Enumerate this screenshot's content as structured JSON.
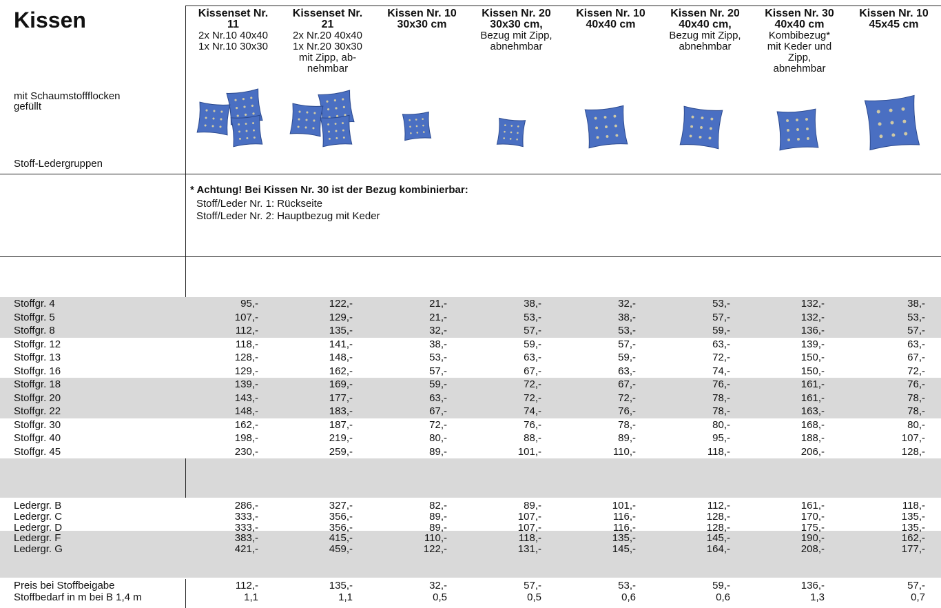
{
  "title": "Kissen",
  "left_notes": [
    "mit Schaumstoffflocken",
    "gefüllt"
  ],
  "group_label": "Stoff-Ledergruppen",
  "columns": [
    {
      "name_lines": [
        "Kissenset Nr.",
        "11"
      ],
      "desc_lines": [
        "2x Nr.10 40x40",
        "1x Nr.10 30x30"
      ]
    },
    {
      "name_lines": [
        "Kissenset Nr.",
        "21"
      ],
      "desc_lines": [
        "2x Nr.20 40x40",
        "1x Nr.20 30x30",
        "mit Zipp, ab-",
        "nehmbar"
      ]
    },
    {
      "name_lines": [
        "Kissen Nr. 10",
        "30x30 cm"
      ],
      "desc_lines": []
    },
    {
      "name_lines": [
        "Kissen Nr. 20",
        "30x30 cm,"
      ],
      "desc_lines": [
        "Bezug mit Zipp,",
        "abnehmbar"
      ]
    },
    {
      "name_lines": [
        "Kissen Nr. 10",
        "40x40 cm"
      ],
      "desc_lines": []
    },
    {
      "name_lines": [
        "Kissen Nr. 20",
        "40x40 cm,"
      ],
      "desc_lines": [
        "Bezug mit Zipp,",
        "abnehmbar"
      ]
    },
    {
      "name_lines": [
        "Kissen Nr. 30",
        "40x40 cm"
      ],
      "desc_lines": [
        "Kombibezug*",
        "mit Keder und",
        "Zipp,",
        "abnehmbar"
      ]
    },
    {
      "name_lines": [
        "Kissen Nr. 10",
        "45x45 cm"
      ],
      "desc_lines": []
    }
  ],
  "note": {
    "title": "* Achtung!  Bei Kissen Nr. 30 ist der Bezug kombinierbar:",
    "lines": [
      "Stoff/Leder Nr. 1: Rückseite",
      "Stoff/Leder Nr. 2: Hauptbezug mit Keder"
    ]
  },
  "stoff_rows": [
    {
      "label": "Stoffgr. 4",
      "prices": [
        "95,-",
        "122,-",
        "21,-",
        "38,-",
        "32,-",
        "53,-",
        "132,-",
        "38,-"
      ]
    },
    {
      "label": "Stoffgr. 5",
      "prices": [
        "107,-",
        "129,-",
        "21,-",
        "53,-",
        "38,-",
        "57,-",
        "132,-",
        "53,-"
      ]
    },
    {
      "label": "Stoffgr. 8",
      "prices": [
        "112,-",
        "135,-",
        "32,-",
        "57,-",
        "53,-",
        "59,-",
        "136,-",
        "57,-"
      ]
    },
    {
      "label": "Stoffgr. 12",
      "prices": [
        "118,-",
        "141,-",
        "38,-",
        "59,-",
        "57,-",
        "63,-",
        "139,-",
        "63,-"
      ]
    },
    {
      "label": "Stoffgr. 13",
      "prices": [
        "128,-",
        "148,-",
        "53,-",
        "63,-",
        "59,-",
        "72,-",
        "150,-",
        "67,-"
      ]
    },
    {
      "label": "Stoffgr. 16",
      "prices": [
        "129,-",
        "162,-",
        "57,-",
        "67,-",
        "63,-",
        "74,-",
        "150,-",
        "72,-"
      ]
    },
    {
      "label": "Stoffgr. 18",
      "prices": [
        "139,-",
        "169,-",
        "59,-",
        "72,-",
        "67,-",
        "76,-",
        "161,-",
        "76,-"
      ]
    },
    {
      "label": "Stoffgr. 20",
      "prices": [
        "143,-",
        "177,-",
        "63,-",
        "72,-",
        "72,-",
        "78,-",
        "161,-",
        "78,-"
      ]
    },
    {
      "label": "Stoffgr. 22",
      "prices": [
        "148,-",
        "183,-",
        "67,-",
        "74,-",
        "76,-",
        "78,-",
        "163,-",
        "78,-"
      ]
    },
    {
      "label": "Stoffgr. 30",
      "prices": [
        "162,-",
        "187,-",
        "72,-",
        "76,-",
        "78,-",
        "80,-",
        "168,-",
        "80,-"
      ]
    },
    {
      "label": "Stoffgr. 40",
      "prices": [
        "198,-",
        "219,-",
        "80,-",
        "88,-",
        "89,-",
        "95,-",
        "188,-",
        "107,-"
      ]
    },
    {
      "label": "Stoffgr. 45",
      "prices": [
        "230,-",
        "259,-",
        "89,-",
        "101,-",
        "110,-",
        "118,-",
        "206,-",
        "128,-"
      ]
    }
  ],
  "leder_rows": [
    {
      "label": "Ledergr. B",
      "prices": [
        "286,-",
        "327,-",
        "82,-",
        "89,-",
        "101,-",
        "112,-",
        "161,-",
        "118,-"
      ]
    },
    {
      "label": "Ledergr. C",
      "prices": [
        "333,-",
        "356,-",
        "89,-",
        "107,-",
        "116,-",
        "128,-",
        "170,-",
        "135,-"
      ]
    },
    {
      "label": "Ledergr. D",
      "prices": [
        "333,-",
        "356,-",
        "89,-",
        "107,-",
        "116,-",
        "128,-",
        "175,-",
        "135,-"
      ]
    },
    {
      "label": "Ledergr. F",
      "prices": [
        "383,-",
        "415,-",
        "110,-",
        "118,-",
        "135,-",
        "145,-",
        "190,-",
        "162,-"
      ]
    },
    {
      "label": "Ledergr. G",
      "prices": [
        "421,-",
        "459,-",
        "122,-",
        "131,-",
        "145,-",
        "164,-",
        "208,-",
        "177,-"
      ]
    }
  ],
  "footer_rows": [
    {
      "label": "Preis bei Stoffbeigabe",
      "prices": [
        "112,-",
        "135,-",
        "32,-",
        "57,-",
        "53,-",
        "59,-",
        "136,-",
        "57,-"
      ]
    },
    {
      "label": "Stoffbedarf in m bei B 1,4 m",
      "prices": [
        "1,1",
        "1,1",
        "0,5",
        "0,5",
        "0,6",
        "0,6",
        "1,3",
        "0,7"
      ]
    }
  ]
}
